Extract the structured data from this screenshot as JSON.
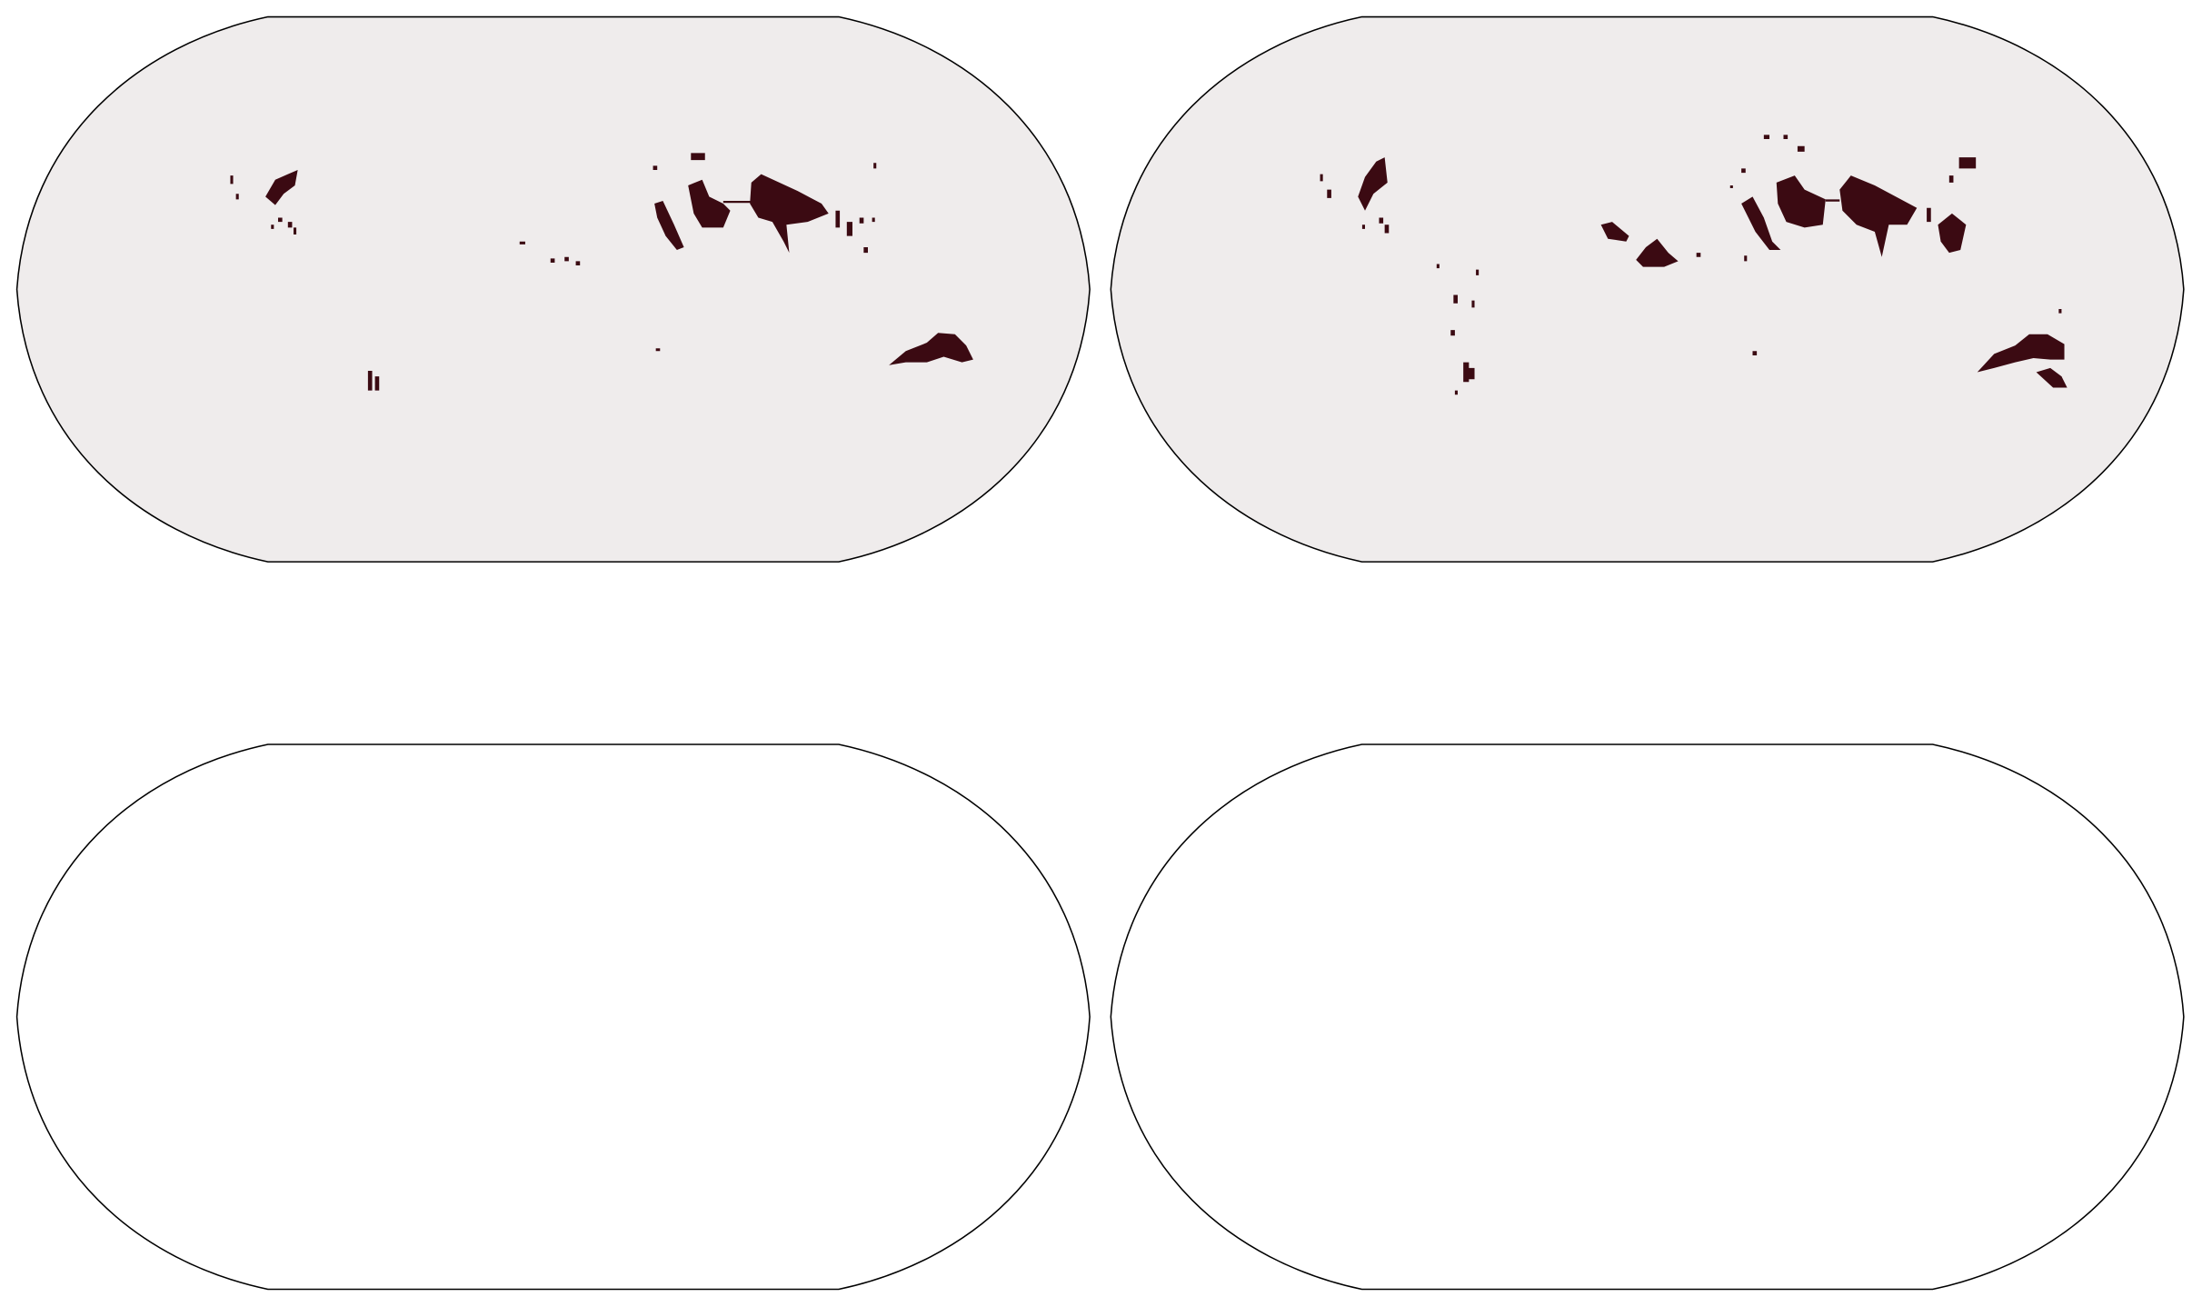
{
  "maps": [
    {
      "projection": "robinson",
      "fill": "#efecec",
      "mask_color": "#3b0a12"
    },
    {
      "projection": "robinson",
      "fill": "#efecec",
      "mask_color": "#3b0a12"
    },
    {
      "projection": "robinson",
      "fill": "#ffffff"
    },
    {
      "projection": "robinson",
      "fill": "#ffffff"
    }
  ]
}
